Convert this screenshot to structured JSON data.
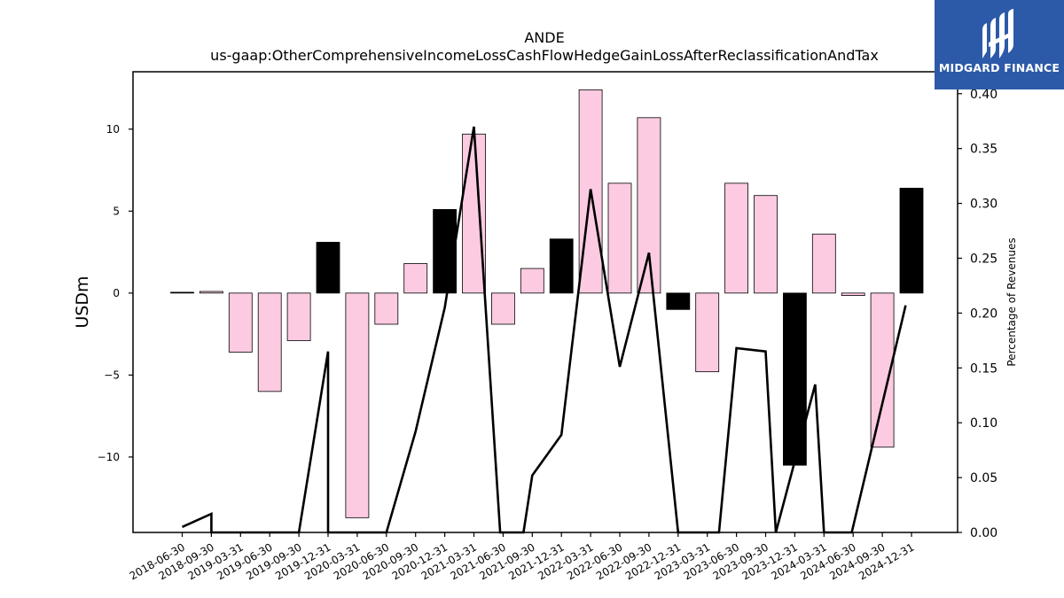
{
  "brand": {
    "name": "MIDGARD FINANCE",
    "bg_color": "#2d5aa8"
  },
  "chart_data": {
    "type": "bar",
    "title": "ANDE",
    "subtitle": "us-gaap:OtherComprehensiveIncomeLossCashFlowHedgeGainLossAfterReclassificationAndTax",
    "ylabel": "USDm",
    "y2label": "Percentage of Revenues",
    "ylim": [
      -14.6,
      13.5
    ],
    "y2lim": [
      0.0,
      0.42
    ],
    "yticks": [
      -10,
      -5,
      0,
      5,
      10
    ],
    "y2ticks": [
      0.0,
      0.05,
      0.1,
      0.15,
      0.2,
      0.25,
      0.3,
      0.35,
      0.4
    ],
    "categories": [
      "2018-06-30",
      "2018-09-30",
      "2019-03-31",
      "2019-06-30",
      "2019-09-30",
      "2019-12-31",
      "2020-03-31",
      "2020-06-30",
      "2020-09-30",
      "2020-12-31",
      "2021-03-31",
      "2021-06-30",
      "2021-09-30",
      "2021-12-31",
      "2022-03-31",
      "2022-06-30",
      "2022-09-30",
      "2022-12-31",
      "2023-03-31",
      "2023-06-30",
      "2023-09-30",
      "2023-12-31",
      "2024-03-31",
      "2024-06-30",
      "2024-09-30",
      "2024-12-31"
    ],
    "values": [
      0.05,
      0.1,
      -3.6,
      -6.0,
      -2.9,
      3.1,
      -13.7,
      -1.9,
      1.8,
      5.1,
      9.7,
      -1.9,
      1.5,
      3.3,
      12.4,
      6.7,
      10.7,
      -1.0,
      -4.8,
      6.7,
      5.95,
      -10.5,
      3.6,
      -0.15,
      -9.4,
      6.4
    ],
    "highlight": [
      true,
      false,
      false,
      false,
      false,
      true,
      false,
      false,
      false,
      true,
      false,
      false,
      false,
      true,
      false,
      false,
      false,
      true,
      false,
      false,
      false,
      true,
      false,
      false,
      false,
      true
    ],
    "bar_color": "#fccbe2",
    "highlight_color": "#000000",
    "line_series": {
      "name": "Percentage of Revenues",
      "values": [
        0.005,
        0.017,
        0.0,
        0.0,
        0.0,
        0.165,
        0.0,
        0.0,
        0.092,
        0.205,
        0.37,
        0.0,
        0.0,
        0.052,
        0.089,
        0.313,
        0.151,
        0.255,
        0.0,
        0.0,
        0.168,
        0.165,
        0.0,
        0.135,
        0.0,
        0.0,
        0.207
      ],
      "x_index": [
        0,
        1,
        1,
        2,
        4,
        5,
        5,
        7,
        8,
        9,
        10,
        10.9,
        11.7,
        12,
        13,
        14,
        15,
        16,
        17,
        18.4,
        19,
        20,
        20.35,
        21.7,
        22,
        22.95,
        24.8
      ],
      "color": "#000000"
    },
    "grid": false,
    "legend": "none"
  }
}
